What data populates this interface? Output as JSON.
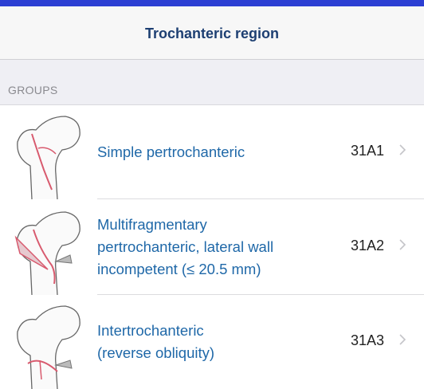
{
  "header": {
    "title": "Trochanteric region"
  },
  "section": {
    "label": "GROUPS"
  },
  "rows": [
    {
      "lines": [
        "Simple pertrochanteric"
      ],
      "code": "31A1"
    },
    {
      "lines": [
        "Multifragmentary",
        "pertrochanteric, lateral wall",
        "incompetent (≤ 20.5 mm)"
      ],
      "code": "31A2"
    },
    {
      "lines": [
        "Intertrochanteric",
        "(reverse obliquity)"
      ],
      "code": "31A3"
    }
  ]
}
